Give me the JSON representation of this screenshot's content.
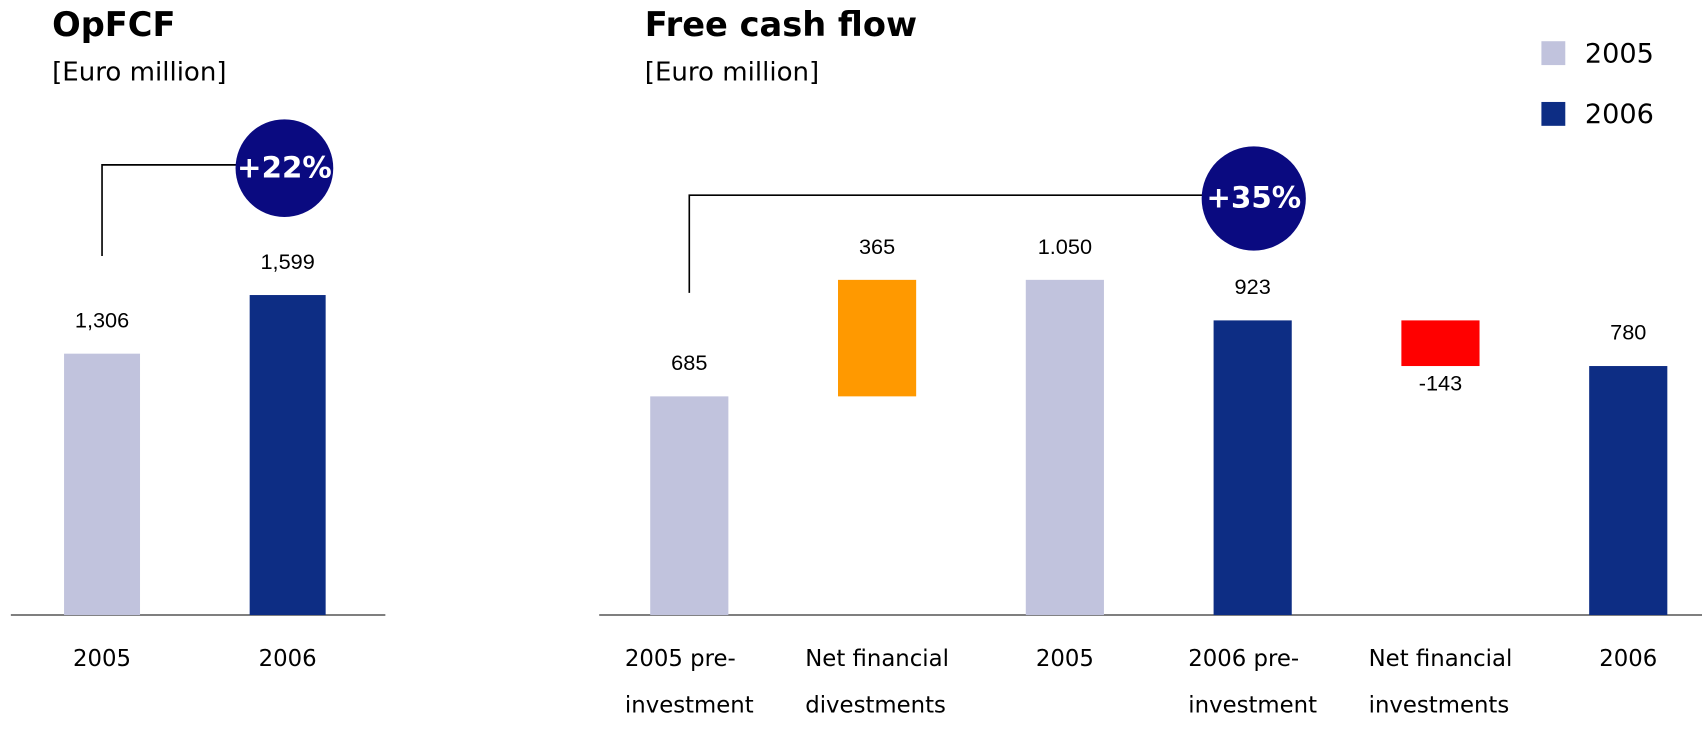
{
  "chart_data": [
    {
      "type": "bar",
      "title": "OpFCF",
      "subtitle": "[Euro million]",
      "categories": [
        "2005",
        "2006"
      ],
      "values": [
        1306,
        1599
      ],
      "value_labels": [
        "1,306",
        "1,599"
      ],
      "colors": [
        "#c1c3dd",
        "#0d2d84"
      ],
      "annotation": "+22%"
    },
    {
      "type": "waterfall",
      "title": "Free cash flow",
      "subtitle": "[Euro million]",
      "categories": [
        "2005 pre-\ninvestment",
        "Net financial\ndivestments",
        "2005",
        "2006 pre-\ninvestment",
        "Net financial\ninvestments",
        "2006"
      ],
      "values": [
        685,
        365,
        1050,
        923,
        -143,
        780
      ],
      "value_labels": [
        "685",
        "365",
        "1.050",
        "923",
        "-143",
        "780"
      ],
      "measure": [
        "absolute",
        "relative",
        "total",
        "absolute",
        "relative",
        "total"
      ],
      "colors": [
        "#c1c3dd",
        "#ff9900",
        "#c1c3dd",
        "#0d2d84",
        "#ff0000",
        "#0d2d84"
      ],
      "legend": [
        {
          "name": "2005",
          "color": "#c1c3dd"
        },
        {
          "name": "2006",
          "color": "#0d2d84"
        }
      ],
      "annotation": "+35%"
    }
  ]
}
